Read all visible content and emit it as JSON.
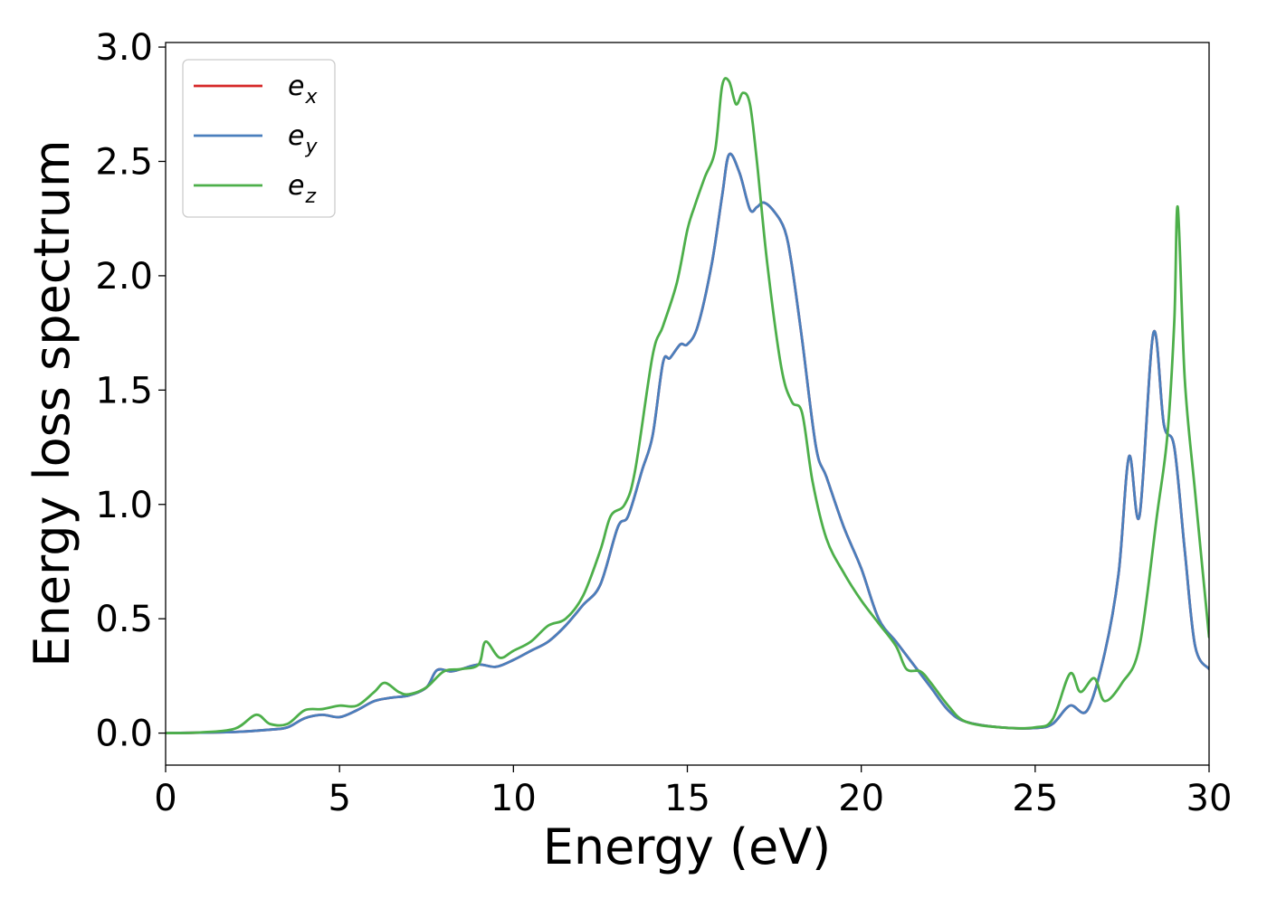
{
  "chart_data": {
    "type": "line",
    "title": "",
    "xlabel": "Energy (eV)",
    "ylabel": "Energy loss spectrum",
    "xlim": [
      0,
      30
    ],
    "ylim": [
      -0.14,
      3.02
    ],
    "xticks": [
      0,
      5,
      10,
      15,
      20,
      25,
      30
    ],
    "xtick_labels": [
      "0",
      "5",
      "10",
      "15",
      "20",
      "25",
      "30"
    ],
    "yticks": [
      0.0,
      0.5,
      1.0,
      1.5,
      2.0,
      2.5,
      3.0
    ],
    "ytick_labels": [
      "0.0",
      "0.5",
      "1.0",
      "1.5",
      "2.0",
      "2.5",
      "3.0"
    ],
    "grid": false,
    "legend_position": "top-left",
    "series": [
      {
        "name": "e_x",
        "legend_base": "e",
        "legend_sub": "x",
        "color": "#d62728",
        "points": [
          [
            0,
            0
          ],
          [
            1,
            0.002
          ],
          [
            2,
            0.005
          ],
          [
            3,
            0.015
          ],
          [
            3.5,
            0.025
          ],
          [
            4,
            0.065
          ],
          [
            4.5,
            0.08
          ],
          [
            5,
            0.07
          ],
          [
            5.5,
            0.1
          ],
          [
            6,
            0.14
          ],
          [
            6.5,
            0.155
          ],
          [
            7,
            0.165
          ],
          [
            7.5,
            0.2
          ],
          [
            7.8,
            0.275
          ],
          [
            8.2,
            0.27
          ],
          [
            8.5,
            0.28
          ],
          [
            9,
            0.3
          ],
          [
            9.5,
            0.29
          ],
          [
            10,
            0.32
          ],
          [
            10.5,
            0.36
          ],
          [
            11,
            0.4
          ],
          [
            11.5,
            0.47
          ],
          [
            12,
            0.56
          ],
          [
            12.5,
            0.65
          ],
          [
            13,
            0.9
          ],
          [
            13.3,
            0.95
          ],
          [
            13.7,
            1.15
          ],
          [
            14,
            1.3
          ],
          [
            14.3,
            1.62
          ],
          [
            14.5,
            1.64
          ],
          [
            14.8,
            1.7
          ],
          [
            15,
            1.7
          ],
          [
            15.3,
            1.78
          ],
          [
            15.7,
            2.05
          ],
          [
            16,
            2.35
          ],
          [
            16.2,
            2.53
          ],
          [
            16.5,
            2.45
          ],
          [
            16.8,
            2.29
          ],
          [
            17,
            2.3
          ],
          [
            17.2,
            2.32
          ],
          [
            17.5,
            2.28
          ],
          [
            17.8,
            2.2
          ],
          [
            18,
            2.05
          ],
          [
            18.3,
            1.72
          ],
          [
            18.7,
            1.25
          ],
          [
            19,
            1.12
          ],
          [
            19.5,
            0.9
          ],
          [
            20,
            0.72
          ],
          [
            20.5,
            0.5
          ],
          [
            21,
            0.4
          ],
          [
            21.5,
            0.3
          ],
          [
            22,
            0.2
          ],
          [
            22.5,
            0.1
          ],
          [
            23,
            0.05
          ],
          [
            24,
            0.025
          ],
          [
            25,
            0.022
          ],
          [
            25.5,
            0.04
          ],
          [
            26,
            0.12
          ],
          [
            26.5,
            0.1
          ],
          [
            27,
            0.35
          ],
          [
            27.4,
            0.7
          ],
          [
            27.7,
            1.21
          ],
          [
            28,
            0.95
          ],
          [
            28.4,
            1.75
          ],
          [
            28.7,
            1.35
          ],
          [
            29,
            1.25
          ],
          [
            29.3,
            0.8
          ],
          [
            29.6,
            0.38
          ],
          [
            30,
            0.28
          ]
        ]
      },
      {
        "name": "e_y",
        "legend_base": "e",
        "legend_sub": "y",
        "color": "#4a7fbd",
        "points": [
          [
            0,
            0
          ],
          [
            1,
            0.002
          ],
          [
            2,
            0.005
          ],
          [
            3,
            0.015
          ],
          [
            3.5,
            0.025
          ],
          [
            4,
            0.065
          ],
          [
            4.5,
            0.08
          ],
          [
            5,
            0.07
          ],
          [
            5.5,
            0.1
          ],
          [
            6,
            0.14
          ],
          [
            6.5,
            0.155
          ],
          [
            7,
            0.165
          ],
          [
            7.5,
            0.2
          ],
          [
            7.8,
            0.275
          ],
          [
            8.2,
            0.27
          ],
          [
            8.5,
            0.28
          ],
          [
            9,
            0.3
          ],
          [
            9.5,
            0.29
          ],
          [
            10,
            0.32
          ],
          [
            10.5,
            0.36
          ],
          [
            11,
            0.4
          ],
          [
            11.5,
            0.47
          ],
          [
            12,
            0.56
          ],
          [
            12.5,
            0.65
          ],
          [
            13,
            0.9
          ],
          [
            13.3,
            0.95
          ],
          [
            13.7,
            1.15
          ],
          [
            14,
            1.3
          ],
          [
            14.3,
            1.62
          ],
          [
            14.5,
            1.64
          ],
          [
            14.8,
            1.7
          ],
          [
            15,
            1.7
          ],
          [
            15.3,
            1.78
          ],
          [
            15.7,
            2.05
          ],
          [
            16,
            2.35
          ],
          [
            16.2,
            2.53
          ],
          [
            16.5,
            2.45
          ],
          [
            16.8,
            2.29
          ],
          [
            17,
            2.3
          ],
          [
            17.2,
            2.32
          ],
          [
            17.5,
            2.28
          ],
          [
            17.8,
            2.2
          ],
          [
            18,
            2.05
          ],
          [
            18.3,
            1.72
          ],
          [
            18.7,
            1.25
          ],
          [
            19,
            1.12
          ],
          [
            19.5,
            0.9
          ],
          [
            20,
            0.72
          ],
          [
            20.5,
            0.5
          ],
          [
            21,
            0.4
          ],
          [
            21.5,
            0.3
          ],
          [
            22,
            0.2
          ],
          [
            22.5,
            0.1
          ],
          [
            23,
            0.05
          ],
          [
            24,
            0.025
          ],
          [
            25,
            0.022
          ],
          [
            25.5,
            0.04
          ],
          [
            26,
            0.12
          ],
          [
            26.5,
            0.1
          ],
          [
            27,
            0.35
          ],
          [
            27.4,
            0.7
          ],
          [
            27.7,
            1.21
          ],
          [
            28,
            0.95
          ],
          [
            28.4,
            1.75
          ],
          [
            28.7,
            1.35
          ],
          [
            29,
            1.25
          ],
          [
            29.3,
            0.8
          ],
          [
            29.6,
            0.38
          ],
          [
            30,
            0.28
          ]
        ]
      },
      {
        "name": "e_z",
        "legend_base": "e",
        "legend_sub": "z",
        "color": "#4daf4a",
        "points": [
          [
            0,
            0
          ],
          [
            1,
            0.003
          ],
          [
            2,
            0.02
          ],
          [
            2.6,
            0.08
          ],
          [
            3,
            0.04
          ],
          [
            3.5,
            0.04
          ],
          [
            4,
            0.1
          ],
          [
            4.5,
            0.105
          ],
          [
            5,
            0.12
          ],
          [
            5.5,
            0.12
          ],
          [
            6,
            0.18
          ],
          [
            6.3,
            0.22
          ],
          [
            6.7,
            0.18
          ],
          [
            7,
            0.17
          ],
          [
            7.5,
            0.2
          ],
          [
            8,
            0.27
          ],
          [
            8.5,
            0.28
          ],
          [
            9,
            0.3
          ],
          [
            9.2,
            0.4
          ],
          [
            9.6,
            0.33
          ],
          [
            10,
            0.36
          ],
          [
            10.5,
            0.4
          ],
          [
            11,
            0.47
          ],
          [
            11.5,
            0.5
          ],
          [
            12,
            0.6
          ],
          [
            12.5,
            0.8
          ],
          [
            12.8,
            0.95
          ],
          [
            13.2,
            1.0
          ],
          [
            13.5,
            1.15
          ],
          [
            14,
            1.65
          ],
          [
            14.3,
            1.78
          ],
          [
            14.7,
            1.97
          ],
          [
            15,
            2.2
          ],
          [
            15.2,
            2.3
          ],
          [
            15.5,
            2.43
          ],
          [
            15.8,
            2.55
          ],
          [
            16,
            2.83
          ],
          [
            16.2,
            2.85
          ],
          [
            16.4,
            2.75
          ],
          [
            16.6,
            2.8
          ],
          [
            16.8,
            2.75
          ],
          [
            17,
            2.5
          ],
          [
            17.3,
            2.05
          ],
          [
            17.7,
            1.6
          ],
          [
            18,
            1.45
          ],
          [
            18.3,
            1.4
          ],
          [
            18.6,
            1.1
          ],
          [
            19,
            0.85
          ],
          [
            19.5,
            0.7
          ],
          [
            20,
            0.58
          ],
          [
            20.5,
            0.48
          ],
          [
            21,
            0.38
          ],
          [
            21.3,
            0.28
          ],
          [
            21.7,
            0.27
          ],
          [
            22,
            0.22
          ],
          [
            22.5,
            0.12
          ],
          [
            23,
            0.05
          ],
          [
            24,
            0.025
          ],
          [
            25,
            0.025
          ],
          [
            25.5,
            0.06
          ],
          [
            26,
            0.26
          ],
          [
            26.3,
            0.18
          ],
          [
            26.7,
            0.24
          ],
          [
            27,
            0.14
          ],
          [
            27.5,
            0.22
          ],
          [
            28,
            0.38
          ],
          [
            28.5,
            0.95
          ],
          [
            28.8,
            1.3
          ],
          [
            29,
            1.8
          ],
          [
            29.1,
            2.3
          ],
          [
            29.3,
            1.55
          ],
          [
            29.6,
            1.05
          ],
          [
            30,
            0.42
          ]
        ]
      }
    ]
  }
}
